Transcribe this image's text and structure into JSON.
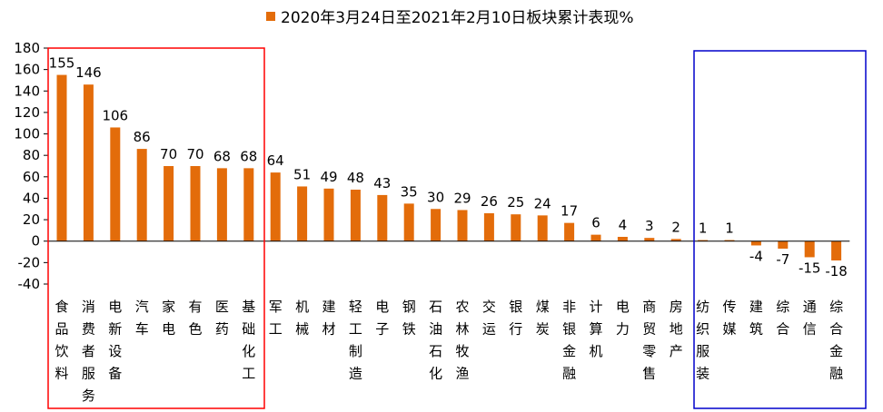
{
  "chart_data": {
    "type": "bar",
    "title": "",
    "legend": {
      "entries": [
        "2020年3月24日至2021年2月10日板块累计表现%"
      ],
      "position": "top-center"
    },
    "series": [
      {
        "name": "2020年3月24日至2021年2月10日板块累计表现%",
        "color": "#E36C0A",
        "values": [
          155,
          146,
          106,
          86,
          70,
          70,
          68,
          68,
          64,
          51,
          49,
          48,
          43,
          35,
          30,
          29,
          26,
          25,
          24,
          17,
          6,
          4,
          3,
          2,
          1,
          1,
          -4,
          -7,
          -15,
          -18
        ]
      }
    ],
    "categories": [
      "食品饮料",
      "消费者服务",
      "电新设备",
      "汽车",
      "家电",
      "有色",
      "医药",
      "基础化工",
      "军工",
      "机械",
      "建材",
      "轻工制造",
      "电子",
      "钢铁",
      "石油石化",
      "农林牧渔",
      "交运",
      "银行",
      "煤炭",
      "非银金融",
      "计算机",
      "电力",
      "商贸零售",
      "房地产",
      "纺织服装",
      "传媒",
      "建筑",
      "综合",
      "通信",
      "综合金融"
    ],
    "ylim": [
      -40,
      180
    ],
    "yticks": [
      -40,
      -20,
      0,
      20,
      40,
      60,
      80,
      100,
      120,
      140,
      160,
      180
    ],
    "xlabel": "",
    "ylabel": "",
    "grid": false,
    "highlight_groups": [
      {
        "from": "食品饮料",
        "to": "基础化工",
        "color": "#FF0000"
      },
      {
        "from": "纺织服装",
        "to": "综合金融",
        "color": "#0000CC"
      }
    ]
  }
}
